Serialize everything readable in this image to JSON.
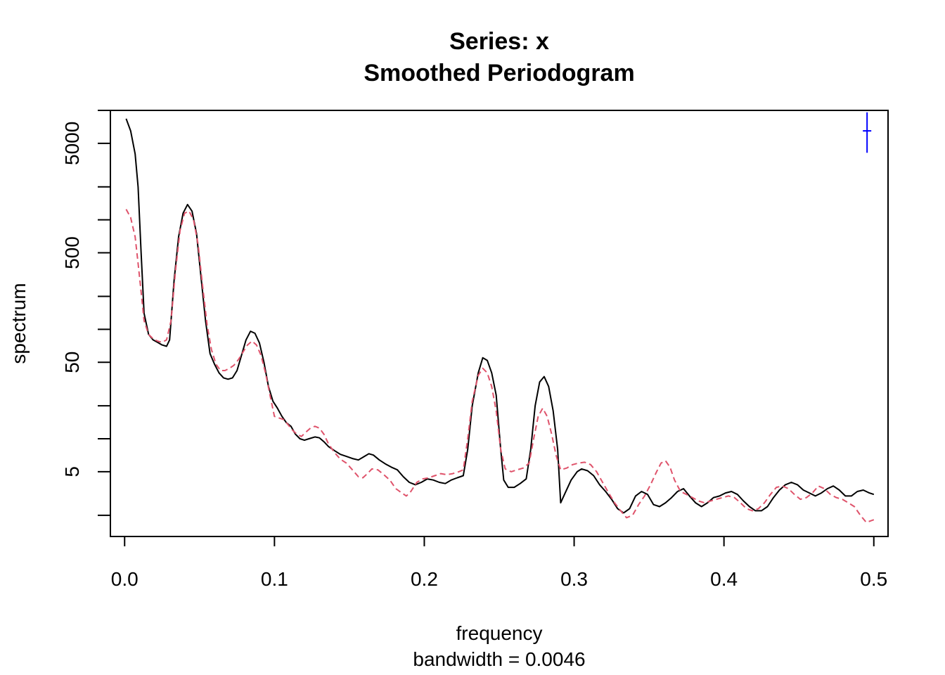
{
  "chart_data": {
    "type": "line",
    "title": "Series: x",
    "subtitle": "Smoothed Periodogram",
    "xlabel": "frequency",
    "xsublabel": "bandwidth = 0.0046",
    "ylabel": "spectrum",
    "log_y": true,
    "xlim": [
      -0.0095,
      0.5095
    ],
    "ylim": [
      1.28,
      10000
    ],
    "x_ticks": [
      0.0,
      0.1,
      0.2,
      0.3,
      0.4,
      0.5
    ],
    "x_tick_labels": [
      "0.0",
      "0.1",
      "0.2",
      "0.3",
      "0.4",
      "0.5"
    ],
    "y_ticks": [
      2,
      5,
      10,
      20,
      50,
      100,
      200,
      500,
      1000,
      2000,
      5000,
      10000
    ],
    "y_tick_labels": [
      "",
      "5",
      "",
      "",
      "50",
      "",
      "",
      "500",
      "",
      "",
      "5000",
      ""
    ],
    "grid": false,
    "series": [
      {
        "color": "#000000",
        "dash": "solid",
        "points": [
          [
            0.001,
            8400
          ],
          [
            0.004,
            6500
          ],
          [
            0.007,
            4000
          ],
          [
            0.009,
            2000
          ],
          [
            0.011,
            500
          ],
          [
            0.013,
            140
          ],
          [
            0.016,
            90
          ],
          [
            0.019,
            80
          ],
          [
            0.022,
            76
          ],
          [
            0.025,
            72
          ],
          [
            0.028,
            70
          ],
          [
            0.03,
            80
          ],
          [
            0.033,
            280
          ],
          [
            0.036,
            700
          ],
          [
            0.039,
            1150
          ],
          [
            0.042,
            1380
          ],
          [
            0.045,
            1200
          ],
          [
            0.048,
            750
          ],
          [
            0.051,
            300
          ],
          [
            0.054,
            120
          ],
          [
            0.057,
            60
          ],
          [
            0.06,
            48
          ],
          [
            0.063,
            40
          ],
          [
            0.066,
            36
          ],
          [
            0.069,
            35
          ],
          [
            0.072,
            36
          ],
          [
            0.075,
            42
          ],
          [
            0.078,
            58
          ],
          [
            0.081,
            80
          ],
          [
            0.084,
            96
          ],
          [
            0.087,
            92
          ],
          [
            0.09,
            75
          ],
          [
            0.093,
            50
          ],
          [
            0.096,
            30
          ],
          [
            0.099,
            22
          ],
          [
            0.102,
            19
          ],
          [
            0.105,
            16
          ],
          [
            0.108,
            14
          ],
          [
            0.111,
            13
          ],
          [
            0.114,
            11
          ],
          [
            0.117,
            10
          ],
          [
            0.12,
            9.7
          ],
          [
            0.123,
            10
          ],
          [
            0.127,
            10.4
          ],
          [
            0.13,
            10.2
          ],
          [
            0.133,
            9.4
          ],
          [
            0.136,
            8.5
          ],
          [
            0.14,
            7.8
          ],
          [
            0.144,
            7.2
          ],
          [
            0.148,
            6.9
          ],
          [
            0.152,
            6.6
          ],
          [
            0.156,
            6.4
          ],
          [
            0.16,
            6.9
          ],
          [
            0.163,
            7.3
          ],
          [
            0.166,
            7.1
          ],
          [
            0.17,
            6.4
          ],
          [
            0.174,
            5.9
          ],
          [
            0.178,
            5.5
          ],
          [
            0.182,
            5.2
          ],
          [
            0.186,
            4.5
          ],
          [
            0.19,
            4.0
          ],
          [
            0.194,
            3.8
          ],
          [
            0.198,
            4.0
          ],
          [
            0.202,
            4.3
          ],
          [
            0.206,
            4.2
          ],
          [
            0.21,
            4.0
          ],
          [
            0.214,
            3.9
          ],
          [
            0.218,
            4.2
          ],
          [
            0.222,
            4.4
          ],
          [
            0.226,
            4.6
          ],
          [
            0.229,
            8
          ],
          [
            0.232,
            20
          ],
          [
            0.236,
            40
          ],
          [
            0.239,
            55
          ],
          [
            0.242,
            52
          ],
          [
            0.245,
            40
          ],
          [
            0.248,
            25
          ],
          [
            0.251,
            8
          ],
          [
            0.253,
            4.2
          ],
          [
            0.256,
            3.6
          ],
          [
            0.26,
            3.6
          ],
          [
            0.264,
            3.9
          ],
          [
            0.268,
            4.3
          ],
          [
            0.271,
            8
          ],
          [
            0.274,
            20
          ],
          [
            0.277,
            33
          ],
          [
            0.28,
            37
          ],
          [
            0.283,
            30
          ],
          [
            0.286,
            18
          ],
          [
            0.289,
            8
          ],
          [
            0.291,
            2.6
          ],
          [
            0.294,
            3.2
          ],
          [
            0.298,
            4.2
          ],
          [
            0.302,
            5.0
          ],
          [
            0.305,
            5.3
          ],
          [
            0.309,
            5.1
          ],
          [
            0.313,
            4.6
          ],
          [
            0.317,
            3.8
          ],
          [
            0.321,
            3.3
          ],
          [
            0.325,
            2.8
          ],
          [
            0.329,
            2.3
          ],
          [
            0.333,
            2.1
          ],
          [
            0.337,
            2.3
          ],
          [
            0.341,
            3.0
          ],
          [
            0.345,
            3.3
          ],
          [
            0.349,
            3.1
          ],
          [
            0.353,
            2.5
          ],
          [
            0.357,
            2.4
          ],
          [
            0.361,
            2.6
          ],
          [
            0.365,
            2.9
          ],
          [
            0.369,
            3.3
          ],
          [
            0.373,
            3.5
          ],
          [
            0.377,
            3.0
          ],
          [
            0.381,
            2.6
          ],
          [
            0.385,
            2.4
          ],
          [
            0.389,
            2.6
          ],
          [
            0.393,
            2.9
          ],
          [
            0.397,
            3.0
          ],
          [
            0.401,
            3.2
          ],
          [
            0.405,
            3.3
          ],
          [
            0.409,
            3.1
          ],
          [
            0.413,
            2.7
          ],
          [
            0.417,
            2.4
          ],
          [
            0.421,
            2.2
          ],
          [
            0.425,
            2.2
          ],
          [
            0.429,
            2.4
          ],
          [
            0.433,
            2.9
          ],
          [
            0.437,
            3.4
          ],
          [
            0.441,
            3.8
          ],
          [
            0.445,
            4.0
          ],
          [
            0.449,
            3.8
          ],
          [
            0.453,
            3.4
          ],
          [
            0.457,
            3.2
          ],
          [
            0.461,
            3.0
          ],
          [
            0.465,
            3.2
          ],
          [
            0.469,
            3.5
          ],
          [
            0.473,
            3.7
          ],
          [
            0.477,
            3.4
          ],
          [
            0.481,
            3.0
          ],
          [
            0.485,
            3.0
          ],
          [
            0.489,
            3.3
          ],
          [
            0.493,
            3.4
          ],
          [
            0.497,
            3.2
          ],
          [
            0.5,
            3.1
          ]
        ]
      },
      {
        "color": "#DF536B",
        "dash": "dashed",
        "points": [
          [
            0.001,
            1250
          ],
          [
            0.004,
            1050
          ],
          [
            0.007,
            700
          ],
          [
            0.009,
            400
          ],
          [
            0.011,
            220
          ],
          [
            0.013,
            120
          ],
          [
            0.016,
            90
          ],
          [
            0.019,
            82
          ],
          [
            0.022,
            78
          ],
          [
            0.025,
            76
          ],
          [
            0.028,
            80
          ],
          [
            0.031,
            120
          ],
          [
            0.034,
            350
          ],
          [
            0.037,
            800
          ],
          [
            0.04,
            1150
          ],
          [
            0.043,
            1200
          ],
          [
            0.046,
            1000
          ],
          [
            0.049,
            600
          ],
          [
            0.052,
            250
          ],
          [
            0.055,
            110
          ],
          [
            0.058,
            65
          ],
          [
            0.061,
            48
          ],
          [
            0.064,
            42
          ],
          [
            0.067,
            42
          ],
          [
            0.07,
            44
          ],
          [
            0.073,
            47
          ],
          [
            0.076,
            53
          ],
          [
            0.079,
            62
          ],
          [
            0.082,
            72
          ],
          [
            0.085,
            78
          ],
          [
            0.088,
            72
          ],
          [
            0.091,
            58
          ],
          [
            0.094,
            40
          ],
          [
            0.097,
            25
          ],
          [
            0.1,
            16
          ],
          [
            0.103,
            15.5
          ],
          [
            0.106,
            15
          ],
          [
            0.109,
            13.5
          ],
          [
            0.112,
            12
          ],
          [
            0.115,
            11
          ],
          [
            0.118,
            10.5
          ],
          [
            0.121,
            11.5
          ],
          [
            0.124,
            12.5
          ],
          [
            0.127,
            13
          ],
          [
            0.13,
            12.5
          ],
          [
            0.133,
            11
          ],
          [
            0.136,
            9
          ],
          [
            0.14,
            7.5
          ],
          [
            0.144,
            6.5
          ],
          [
            0.148,
            6.0
          ],
          [
            0.152,
            5.2
          ],
          [
            0.156,
            4.5
          ],
          [
            0.159,
            4.4
          ],
          [
            0.162,
            4.8
          ],
          [
            0.165,
            5.3
          ],
          [
            0.169,
            5.2
          ],
          [
            0.173,
            4.7
          ],
          [
            0.177,
            4.2
          ],
          [
            0.181,
            3.5
          ],
          [
            0.185,
            3.2
          ],
          [
            0.188,
            3.0
          ],
          [
            0.191,
            3.3
          ],
          [
            0.195,
            4.0
          ],
          [
            0.199,
            4.3
          ],
          [
            0.203,
            4.4
          ],
          [
            0.207,
            4.6
          ],
          [
            0.211,
            4.8
          ],
          [
            0.215,
            4.7
          ],
          [
            0.219,
            4.8
          ],
          [
            0.223,
            5.0
          ],
          [
            0.226,
            5.2
          ],
          [
            0.229,
            10
          ],
          [
            0.232,
            22
          ],
          [
            0.236,
            38
          ],
          [
            0.239,
            44
          ],
          [
            0.242,
            40
          ],
          [
            0.245,
            30
          ],
          [
            0.248,
            18
          ],
          [
            0.251,
            8
          ],
          [
            0.254,
            5.3
          ],
          [
            0.258,
            5.0
          ],
          [
            0.262,
            5.2
          ],
          [
            0.266,
            5.4
          ],
          [
            0.27,
            6
          ],
          [
            0.273,
            10
          ],
          [
            0.276,
            16
          ],
          [
            0.279,
            19
          ],
          [
            0.282,
            16
          ],
          [
            0.285,
            11
          ],
          [
            0.288,
            7
          ],
          [
            0.291,
            5.2
          ],
          [
            0.295,
            5.4
          ],
          [
            0.299,
            5.8
          ],
          [
            0.303,
            6.0
          ],
          [
            0.307,
            6.1
          ],
          [
            0.311,
            5.8
          ],
          [
            0.315,
            5.0
          ],
          [
            0.319,
            4.0
          ],
          [
            0.323,
            3.2
          ],
          [
            0.327,
            2.6
          ],
          [
            0.331,
            2.2
          ],
          [
            0.335,
            1.9
          ],
          [
            0.339,
            2.0
          ],
          [
            0.343,
            2.5
          ],
          [
            0.347,
            3.0
          ],
          [
            0.351,
            3.8
          ],
          [
            0.355,
            5.0
          ],
          [
            0.358,
            6.0
          ],
          [
            0.361,
            6.3
          ],
          [
            0.364,
            5.5
          ],
          [
            0.367,
            4.2
          ],
          [
            0.371,
            3.3
          ],
          [
            0.375,
            3.1
          ],
          [
            0.379,
            2.9
          ],
          [
            0.383,
            2.7
          ],
          [
            0.387,
            2.6
          ],
          [
            0.391,
            2.7
          ],
          [
            0.395,
            2.8
          ],
          [
            0.399,
            2.9
          ],
          [
            0.403,
            3.0
          ],
          [
            0.407,
            2.9
          ],
          [
            0.411,
            2.6
          ],
          [
            0.415,
            2.3
          ],
          [
            0.419,
            2.2
          ],
          [
            0.423,
            2.3
          ],
          [
            0.427,
            2.6
          ],
          [
            0.431,
            3.1
          ],
          [
            0.435,
            3.6
          ],
          [
            0.439,
            3.7
          ],
          [
            0.443,
            3.5
          ],
          [
            0.447,
            3.1
          ],
          [
            0.451,
            2.8
          ],
          [
            0.455,
            2.9
          ],
          [
            0.459,
            3.2
          ],
          [
            0.463,
            3.7
          ],
          [
            0.467,
            3.5
          ],
          [
            0.471,
            3.1
          ],
          [
            0.475,
            2.9
          ],
          [
            0.479,
            2.8
          ],
          [
            0.483,
            2.6
          ],
          [
            0.487,
            2.4
          ],
          [
            0.491,
            2.0
          ],
          [
            0.495,
            1.72
          ],
          [
            0.498,
            1.78
          ],
          [
            0.5,
            1.82
          ]
        ]
      }
    ],
    "ci_bar": {
      "color": "#0000FF",
      "x": 0.4955,
      "lower": 4100,
      "upper": 9600,
      "center": 6500
    }
  }
}
